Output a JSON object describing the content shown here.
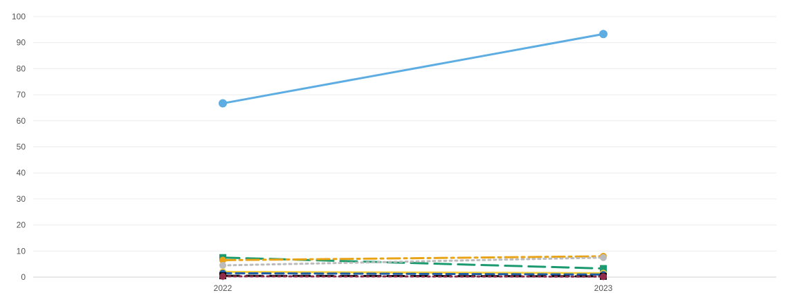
{
  "chart_data": {
    "type": "line",
    "title": "",
    "xlabel": "",
    "ylabel": "",
    "x": [
      "2022",
      "2023"
    ],
    "ylim": [
      0,
      100
    ],
    "yticks": [
      0,
      10,
      20,
      30,
      40,
      50,
      60,
      70,
      80,
      90,
      100
    ],
    "grid": true,
    "series": [
      {
        "values": [
          66.7,
          93.3
        ],
        "color": "#5DADE2",
        "dash": "solid",
        "marker": "circle"
      },
      {
        "values": [
          7.5,
          3.3
        ],
        "color": "#1A9A6E",
        "dash": "long-dash",
        "marker": "square"
      },
      {
        "values": [
          6.5,
          8.0
        ],
        "color": "#E8A317",
        "dash": "dash-dot",
        "marker": "circle"
      },
      {
        "values": [
          4.5,
          7.5
        ],
        "color": "#BBBBBB",
        "dash": "dotted",
        "marker": "circle"
      },
      {
        "values": [
          2.0,
          1.5
        ],
        "color": "#F4D03F",
        "dash": "solid",
        "marker": "circle"
      },
      {
        "values": [
          1.5,
          1.0
        ],
        "color": "#1F5FA8",
        "dash": "dashed",
        "marker": "circle"
      },
      {
        "values": [
          0.5,
          0.3
        ],
        "color": "#000000",
        "dash": "long-dash",
        "marker": "square"
      },
      {
        "values": [
          0.3,
          0.2
        ],
        "color": "#8E2C4A",
        "dash": "dotted",
        "marker": "circle"
      }
    ]
  }
}
